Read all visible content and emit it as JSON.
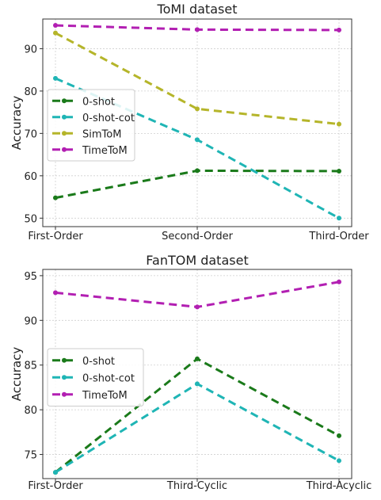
{
  "chart_data": [
    {
      "type": "line",
      "title": "ToMI dataset",
      "xlabel": "",
      "ylabel": "Accuracy",
      "categories": [
        "First-Order",
        "Second-Order",
        "Third-Order"
      ],
      "ylim": [
        48,
        97
      ],
      "yticks": [
        50,
        60,
        70,
        80,
        90
      ],
      "grid": true,
      "legend_position": "center-left",
      "series": [
        {
          "name": "0-shot",
          "color": "#1a7a1a",
          "values": [
            54.8,
            61.2,
            61.1
          ]
        },
        {
          "name": "0-shot-cot",
          "color": "#1fb5b5",
          "values": [
            83.0,
            68.5,
            50.0
          ]
        },
        {
          "name": "SimToM",
          "color": "#b5b52a",
          "values": [
            93.7,
            75.8,
            72.2
          ]
        },
        {
          "name": "TimeToM",
          "color": "#b21fb2",
          "values": [
            95.5,
            94.5,
            94.4
          ]
        }
      ]
    },
    {
      "type": "line",
      "title": "FanTOM dataset",
      "xlabel": "",
      "ylabel": "Accuracy",
      "categories": [
        "First-Order",
        "Third-Cyclic",
        "Third-Acyclic"
      ],
      "ylim": [
        72.3,
        95.7
      ],
      "yticks": [
        75,
        80,
        85,
        90,
        95
      ],
      "grid": true,
      "legend_position": "center-left",
      "series": [
        {
          "name": "0-shot",
          "color": "#1a7a1a",
          "values": [
            73.0,
            85.7,
            77.1
          ]
        },
        {
          "name": "0-shot-cot",
          "color": "#1fb5b5",
          "values": [
            73.0,
            82.9,
            74.3
          ]
        },
        {
          "name": "TimeToM",
          "color": "#b21fb2",
          "values": [
            93.1,
            91.5,
            94.3
          ]
        }
      ]
    }
  ]
}
